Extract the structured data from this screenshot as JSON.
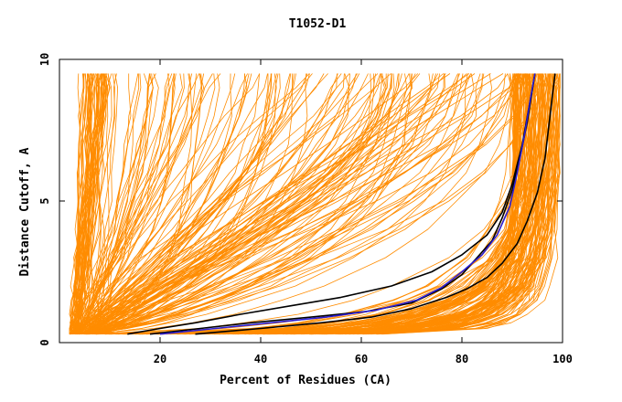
{
  "chart_data": {
    "type": "line",
    "title": "T1052-D1",
    "xlabel": "Percent of Residues (CA)",
    "ylabel": "Distance Cutoff, A",
    "xlim": [
      0,
      100
    ],
    "ylim": [
      0,
      10
    ],
    "x_ticks": [
      0,
      20,
      40,
      60,
      80,
      100
    ],
    "x_tick_labels": [
      "",
      "20",
      "40",
      "60",
      "80",
      "100"
    ],
    "y_ticks": [
      0,
      5,
      10
    ],
    "y_tick_labels": [
      "0",
      "5",
      "10"
    ],
    "grid": false,
    "legend": "none",
    "colors": {
      "background_models": "#ff8c00",
      "highlight_black": "#000000",
      "highlight_blue": "#2b1fd6"
    },
    "y_levels": [
      0.3,
      0.5,
      0.7,
      1.0,
      1.5,
      2.0,
      3.0,
      4.0,
      5.0,
      6.0,
      7.0,
      8.0,
      9.0,
      9.5
    ],
    "highlighted_series": [
      {
        "color": "#000000",
        "points": [
          [
            13.5,
            0.3
          ],
          [
            20,
            0.5
          ],
          [
            27,
            0.7
          ],
          [
            36,
            1.0
          ],
          [
            46,
            1.3
          ],
          [
            56,
            1.6
          ],
          [
            66,
            2.0
          ],
          [
            74,
            2.5
          ],
          [
            80,
            3.1
          ],
          [
            85,
            3.8
          ],
          [
            88,
            4.6
          ],
          [
            90,
            5.6
          ],
          [
            92,
            7.0
          ],
          [
            93.5,
            8.5
          ],
          [
            94.5,
            9.5
          ]
        ]
      },
      {
        "color": "#000000",
        "points": [
          [
            18,
            0.3
          ],
          [
            28,
            0.5
          ],
          [
            38,
            0.7
          ],
          [
            50,
            0.9
          ],
          [
            61,
            1.1
          ],
          [
            70,
            1.4
          ],
          [
            76,
            1.9
          ],
          [
            80,
            2.4
          ],
          [
            83,
            3.0
          ],
          [
            86,
            3.6
          ],
          [
            88,
            4.4
          ],
          [
            90,
            5.4
          ],
          [
            91.5,
            6.5
          ],
          [
            93,
            7.8
          ],
          [
            94.5,
            9.5
          ]
        ]
      },
      {
        "color": "#000000",
        "points": [
          [
            27,
            0.3
          ],
          [
            40,
            0.5
          ],
          [
            52,
            0.7
          ],
          [
            62,
            0.9
          ],
          [
            70,
            1.2
          ],
          [
            77,
            1.6
          ],
          [
            81,
            1.9
          ],
          [
            85,
            2.3
          ],
          [
            88,
            2.8
          ],
          [
            91,
            3.5
          ],
          [
            93,
            4.3
          ],
          [
            95,
            5.3
          ],
          [
            96.5,
            6.5
          ],
          [
            97.5,
            8
          ],
          [
            98.5,
            9.5
          ]
        ]
      },
      {
        "color": "#2b1fd6",
        "points": [
          [
            20,
            0.3
          ],
          [
            31,
            0.5
          ],
          [
            42,
            0.7
          ],
          [
            53,
            0.9
          ],
          [
            63,
            1.15
          ],
          [
            71,
            1.5
          ],
          [
            76,
            1.95
          ],
          [
            80,
            2.5
          ],
          [
            84,
            3.1
          ],
          [
            87,
            3.8
          ],
          [
            89.5,
            4.8
          ],
          [
            91,
            6.0
          ],
          [
            92.5,
            7.4
          ],
          [
            93.5,
            8.5
          ],
          [
            94.5,
            9.5
          ]
        ]
      }
    ]
  }
}
